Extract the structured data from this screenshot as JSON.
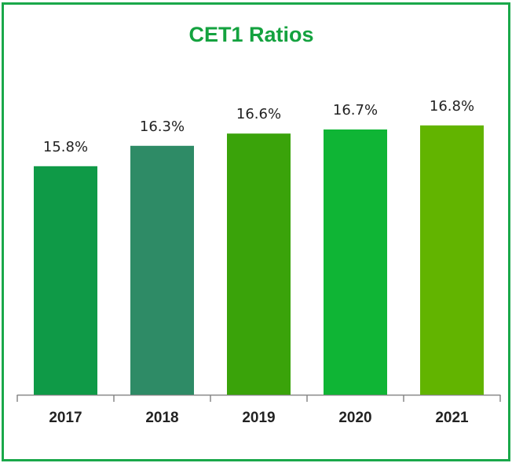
{
  "chart_data": {
    "type": "bar",
    "title": "CET1 Ratios",
    "categories": [
      "2017",
      "2018",
      "2019",
      "2020",
      "2021"
    ],
    "values": [
      15.8,
      16.3,
      16.6,
      16.7,
      16.8
    ],
    "value_labels": [
      "15.8%",
      "16.3%",
      "16.6%",
      "16.7%",
      "16.8%"
    ],
    "colors": [
      "#0f9a47",
      "#2e8b66",
      "#3aa30a",
      "#0fb535",
      "#62b400"
    ],
    "ylim": [
      10.2,
      17
    ]
  }
}
